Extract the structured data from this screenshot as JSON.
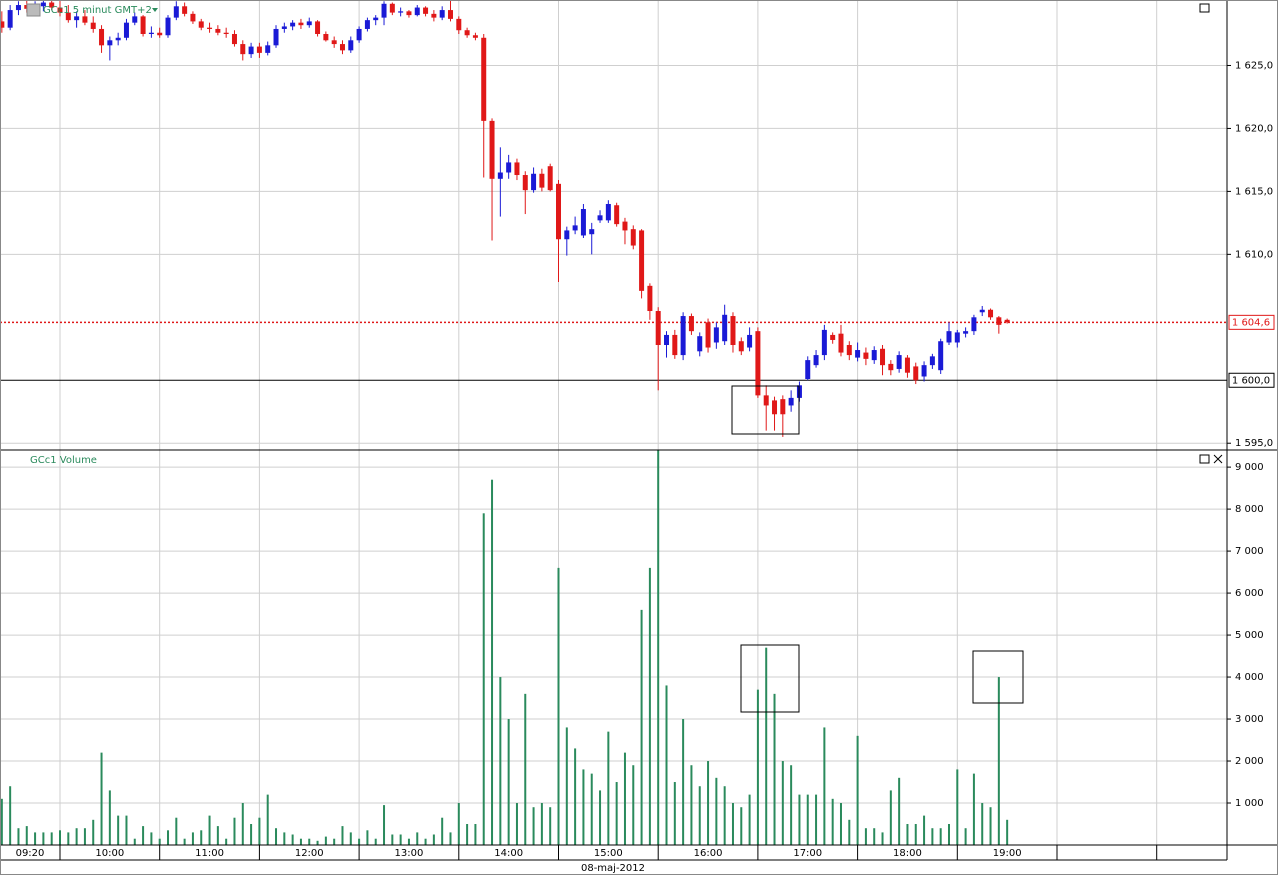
{
  "chart_data": {
    "type": "candlestick",
    "title": "GCc1  5 minut GMT+2",
    "volume_title": "GCc1 Volume",
    "date_label": "08-maj-2012",
    "up_color": "#1a1ad6",
    "down_color": "#e01818",
    "volume_color": "#2a8a5c",
    "x": [
      "09:25",
      "09:30",
      "09:35",
      "09:40",
      "09:45",
      "09:50",
      "09:55",
      "10:00",
      "10:05",
      "10:10",
      "10:15",
      "10:20",
      "10:25",
      "10:30",
      "10:35",
      "10:40",
      "10:45",
      "10:50",
      "10:55",
      "11:00",
      "11:05",
      "11:10",
      "11:15",
      "11:20",
      "11:25",
      "11:30",
      "11:35",
      "11:40",
      "11:45",
      "11:50",
      "11:55",
      "12:00",
      "12:05",
      "12:10",
      "12:15",
      "12:20",
      "12:25",
      "12:30",
      "12:35",
      "12:40",
      "12:45",
      "12:50",
      "12:55",
      "13:00",
      "13:05",
      "13:10",
      "13:15",
      "13:20",
      "13:25",
      "13:30",
      "13:35",
      "13:40",
      "13:45",
      "13:50",
      "13:55",
      "14:00",
      "14:05",
      "14:10",
      "14:15",
      "14:20",
      "14:25",
      "14:30",
      "14:35",
      "14:40",
      "14:45",
      "14:50",
      "14:55",
      "15:00",
      "15:05",
      "15:10",
      "15:15",
      "15:20",
      "15:25",
      "15:30",
      "15:35",
      "15:40",
      "15:45",
      "15:50",
      "15:55",
      "16:00",
      "16:05",
      "16:10",
      "16:15",
      "16:20",
      "16:25",
      "16:30",
      "16:35",
      "16:40",
      "16:45",
      "16:50",
      "16:55",
      "17:00",
      "17:05",
      "17:10",
      "17:15",
      "17:20",
      "17:25",
      "17:30",
      "17:35",
      "17:40",
      "17:45",
      "17:50",
      "17:55",
      "18:00",
      "18:05",
      "18:10",
      "18:15",
      "18:20",
      "18:25",
      "18:30",
      "18:35",
      "18:40",
      "18:45",
      "18:50",
      "18:55",
      "19:00",
      "19:05",
      "19:10",
      "19:15",
      "19:20",
      "19:25",
      "19:30"
    ],
    "ohlc": [
      [
        1628.5,
        1629.3,
        1627.6,
        1628.0
      ],
      [
        1628.0,
        1629.8,
        1627.8,
        1629.4
      ],
      [
        1629.4,
        1630.1,
        1629.0,
        1629.8
      ],
      [
        1629.8,
        1630.2,
        1629.2,
        1629.5
      ],
      [
        1629.5,
        1630.1,
        1629.0,
        1629.7
      ],
      [
        1629.7,
        1630.2,
        1629.3,
        1630.0
      ],
      [
        1630.0,
        1630.2,
        1629.4,
        1629.6
      ],
      [
        1629.6,
        1630.2,
        1628.9,
        1629.2
      ],
      [
        1629.2,
        1629.8,
        1628.4,
        1628.6
      ],
      [
        1628.6,
        1629.3,
        1628.0,
        1628.9
      ],
      [
        1628.9,
        1629.4,
        1628.2,
        1628.4
      ],
      [
        1628.4,
        1628.9,
        1627.6,
        1627.9
      ],
      [
        1627.9,
        1628.2,
        1626.0,
        1626.6
      ],
      [
        1626.6,
        1627.3,
        1625.4,
        1627.0
      ],
      [
        1627.0,
        1627.6,
        1626.6,
        1627.2
      ],
      [
        1627.2,
        1628.7,
        1627.0,
        1628.4
      ],
      [
        1628.4,
        1629.2,
        1628.2,
        1628.9
      ],
      [
        1628.9,
        1629.0,
        1627.3,
        1627.5
      ],
      [
        1627.5,
        1628.1,
        1627.2,
        1627.6
      ],
      [
        1627.6,
        1628.0,
        1627.2,
        1627.4
      ],
      [
        1627.4,
        1629.0,
        1627.2,
        1628.8
      ],
      [
        1628.8,
        1630.1,
        1628.6,
        1629.7
      ],
      [
        1629.7,
        1630.0,
        1628.9,
        1629.1
      ],
      [
        1629.1,
        1629.3,
        1628.3,
        1628.5
      ],
      [
        1628.5,
        1628.7,
        1627.8,
        1628.0
      ],
      [
        1628.0,
        1628.4,
        1627.6,
        1627.9
      ],
      [
        1627.9,
        1628.2,
        1627.4,
        1627.6
      ],
      [
        1627.6,
        1628.0,
        1627.2,
        1627.5
      ],
      [
        1627.5,
        1627.8,
        1626.5,
        1626.7
      ],
      [
        1626.7,
        1627.0,
        1625.4,
        1625.9
      ],
      [
        1625.9,
        1626.8,
        1625.6,
        1626.5
      ],
      [
        1626.5,
        1626.8,
        1625.6,
        1626.0
      ],
      [
        1626.0,
        1626.9,
        1625.8,
        1626.6
      ],
      [
        1626.6,
        1628.2,
        1626.4,
        1627.9
      ],
      [
        1627.9,
        1628.4,
        1627.6,
        1628.1
      ],
      [
        1628.1,
        1628.6,
        1627.8,
        1628.4
      ],
      [
        1628.4,
        1628.7,
        1627.9,
        1628.2
      ],
      [
        1628.2,
        1628.8,
        1628.0,
        1628.5
      ],
      [
        1628.5,
        1628.6,
        1627.3,
        1627.5
      ],
      [
        1627.5,
        1627.7,
        1626.9,
        1627.0
      ],
      [
        1627.0,
        1627.3,
        1626.4,
        1626.7
      ],
      [
        1626.7,
        1627.0,
        1625.9,
        1626.2
      ],
      [
        1626.2,
        1627.3,
        1626.0,
        1627.0
      ],
      [
        1627.0,
        1628.1,
        1626.8,
        1627.9
      ],
      [
        1627.9,
        1628.8,
        1627.7,
        1628.6
      ],
      [
        1628.6,
        1629.0,
        1628.2,
        1628.8
      ],
      [
        1628.8,
        1630.1,
        1628.2,
        1629.9
      ],
      [
        1629.9,
        1630.0,
        1629.0,
        1629.2
      ],
      [
        1629.2,
        1629.6,
        1628.9,
        1629.3
      ],
      [
        1629.3,
        1629.4,
        1628.8,
        1629.0
      ],
      [
        1629.0,
        1629.8,
        1628.9,
        1629.6
      ],
      [
        1629.6,
        1629.7,
        1628.9,
        1629.1
      ],
      [
        1629.1,
        1629.4,
        1628.5,
        1628.8
      ],
      [
        1628.8,
        1629.7,
        1628.6,
        1629.4
      ],
      [
        1629.4,
        1630.2,
        1628.5,
        1628.7
      ],
      [
        1628.7,
        1628.9,
        1627.5,
        1627.8
      ],
      [
        1627.8,
        1628.0,
        1627.2,
        1627.4
      ],
      [
        1627.4,
        1627.6,
        1627.0,
        1627.2
      ],
      [
        1627.2,
        1627.5,
        1616.1,
        1620.6
      ],
      [
        1620.6,
        1620.8,
        1611.1,
        1616.0
      ],
      [
        1616.0,
        1618.5,
        1613.0,
        1616.5
      ],
      [
        1616.5,
        1617.9,
        1616.0,
        1617.3
      ],
      [
        1617.3,
        1617.6,
        1615.9,
        1616.3
      ],
      [
        1616.3,
        1616.6,
        1613.2,
        1615.1
      ],
      [
        1615.1,
        1616.9,
        1614.9,
        1616.4
      ],
      [
        1616.4,
        1616.8,
        1615.0,
        1615.3
      ],
      [
        1617.0,
        1617.2,
        1615.0,
        1615.1
      ],
      [
        1615.6,
        1615.9,
        1607.8,
        1611.2
      ],
      [
        1611.2,
        1612.2,
        1609.9,
        1611.9
      ],
      [
        1611.9,
        1613.0,
        1611.6,
        1612.3
      ],
      [
        1611.5,
        1614.0,
        1611.3,
        1613.6
      ],
      [
        1611.6,
        1612.5,
        1610.0,
        1612.0
      ],
      [
        1612.7,
        1613.5,
        1612.5,
        1613.1
      ],
      [
        1612.7,
        1614.3,
        1612.5,
        1614.0
      ],
      [
        1613.9,
        1614.1,
        1612.2,
        1612.4
      ],
      [
        1612.6,
        1612.9,
        1610.8,
        1611.9
      ],
      [
        1612.0,
        1612.3,
        1610.4,
        1610.7
      ],
      [
        1611.9,
        1612.0,
        1606.5,
        1607.1
      ],
      [
        1607.5,
        1607.7,
        1604.8,
        1605.5
      ],
      [
        1605.5,
        1605.8,
        1599.2,
        1602.8
      ],
      [
        1602.8,
        1603.9,
        1601.8,
        1603.6
      ],
      [
        1603.6,
        1604.0,
        1601.7,
        1602.0
      ],
      [
        1602.0,
        1605.4,
        1601.6,
        1605.1
      ],
      [
        1605.1,
        1605.3,
        1603.6,
        1603.9
      ],
      [
        1602.3,
        1603.8,
        1601.9,
        1603.5
      ],
      [
        1604.6,
        1604.9,
        1602.2,
        1602.6
      ],
      [
        1603.0,
        1604.6,
        1602.5,
        1604.2
      ],
      [
        1603.1,
        1606.0,
        1602.8,
        1605.2
      ],
      [
        1605.1,
        1605.4,
        1602.2,
        1602.8
      ],
      [
        1603.1,
        1603.4,
        1602.0,
        1602.3
      ],
      [
        1602.6,
        1604.2,
        1602.3,
        1603.6
      ],
      [
        1603.9,
        1604.2,
        1598.6,
        1598.8
      ],
      [
        1598.8,
        1599.6,
        1596.0,
        1598.0
      ],
      [
        1598.4,
        1598.7,
        1596.0,
        1597.3
      ],
      [
        1598.5,
        1598.8,
        1595.5,
        1597.3
      ],
      [
        1598.0,
        1599.2,
        1597.5,
        1598.6
      ],
      [
        1598.6,
        1599.9,
        1598.3,
        1599.6
      ],
      [
        1600.1,
        1601.9,
        1600.0,
        1601.6
      ],
      [
        1601.2,
        1602.4,
        1601.0,
        1602.0
      ],
      [
        1602.0,
        1604.4,
        1601.6,
        1604.0
      ],
      [
        1603.6,
        1603.8,
        1602.9,
        1603.2
      ],
      [
        1603.7,
        1604.4,
        1601.9,
        1602.2
      ],
      [
        1602.8,
        1603.1,
        1601.6,
        1602.0
      ],
      [
        1601.8,
        1603.0,
        1601.5,
        1602.4
      ],
      [
        1602.2,
        1602.6,
        1601.2,
        1601.7
      ],
      [
        1601.6,
        1602.7,
        1601.3,
        1602.4
      ],
      [
        1602.5,
        1602.8,
        1600.4,
        1601.2
      ],
      [
        1601.3,
        1601.6,
        1600.4,
        1600.8
      ],
      [
        1600.9,
        1602.3,
        1600.6,
        1602.0
      ],
      [
        1601.8,
        1602.0,
        1600.2,
        1600.6
      ],
      [
        1601.1,
        1601.4,
        1599.7,
        1600.0
      ],
      [
        1600.3,
        1601.5,
        1599.9,
        1601.2
      ],
      [
        1601.2,
        1602.1,
        1600.9,
        1601.9
      ],
      [
        1600.8,
        1603.3,
        1600.5,
        1603.1
      ],
      [
        1603.0,
        1604.6,
        1602.8,
        1603.9
      ],
      [
        1603.0,
        1604.0,
        1602.6,
        1603.8
      ],
      [
        1603.7,
        1604.2,
        1603.4,
        1603.9
      ],
      [
        1603.9,
        1605.2,
        1603.6,
        1605.0
      ],
      [
        1605.4,
        1605.9,
        1605.1,
        1605.6
      ],
      [
        1605.6,
        1605.7,
        1604.8,
        1605.0
      ],
      [
        1605.0,
        1605.1,
        1603.7,
        1604.4
      ],
      [
        1604.8,
        1604.9,
        1604.5,
        1604.6
      ]
    ],
    "volume": [
      1100,
      1400,
      400,
      450,
      300,
      300,
      300,
      350,
      300,
      400,
      400,
      600,
      2200,
      1300,
      700,
      700,
      150,
      450,
      300,
      150,
      350,
      650,
      150,
      300,
      350,
      700,
      450,
      150,
      650,
      1000,
      500,
      650,
      1200,
      400,
      300,
      250,
      150,
      150,
      100,
      200,
      150,
      450,
      300,
      150,
      350,
      150,
      950,
      250,
      250,
      150,
      300,
      150,
      250,
      650,
      300,
      1000,
      500,
      500,
      7900,
      8700,
      4000,
      3000,
      1000,
      3600,
      900,
      1000,
      900,
      6600,
      2800,
      2300,
      1800,
      1700,
      1300,
      2700,
      1500,
      2200,
      1900,
      5600,
      6600,
      9400,
      3800,
      1500,
      3000,
      1900,
      1400,
      2000,
      1600,
      1400,
      1000,
      900,
      1200,
      3700,
      4700,
      3600,
      2000,
      1900,
      1200,
      1200,
      1200,
      2800,
      1100,
      1000,
      600,
      2600,
      400,
      400,
      300,
      1300,
      1600,
      500,
      500,
      700,
      400,
      400,
      500,
      1800,
      400,
      1700,
      1000,
      900,
      4000,
      600
    ],
    "ylim": [
      1594.7,
      1630.2
    ],
    "yticks": [
      {
        "value": 1595,
        "label": "1 595,0"
      },
      {
        "value": 1610,
        "label": "1 610,0"
      },
      {
        "value": 1615,
        "label": "1 615,0"
      },
      {
        "value": 1620,
        "label": "1 620,0"
      },
      {
        "value": 1625,
        "label": "1 625,0"
      }
    ],
    "price_line": {
      "value": 1604.6,
      "label": "1 604,6",
      "color": "#e01818"
    },
    "level_line": {
      "value": 1600,
      "label": "1 600,0",
      "color": "#000000"
    },
    "volume_ylim": [
      0,
      9360
    ],
    "volume_yticks": [
      {
        "value": 1000,
        "label": "1 000"
      },
      {
        "value": 2000,
        "label": "2 000"
      },
      {
        "value": 3000,
        "label": "3 000"
      },
      {
        "value": 4000,
        "label": "4 000"
      },
      {
        "value": 5000,
        "label": "5 000"
      },
      {
        "value": 6000,
        "label": "6 000"
      },
      {
        "value": 7000,
        "label": "7 000"
      },
      {
        "value": 8000,
        "label": "8 000"
      },
      {
        "value": 9000,
        "label": "9 000"
      }
    ],
    "xticks": [
      "09:20",
      "10:00",
      "11:00",
      "12:00",
      "13:00",
      "14:00",
      "15:00",
      "16:00",
      "17:00",
      "18:00",
      "19:00"
    ],
    "grid": true
  }
}
